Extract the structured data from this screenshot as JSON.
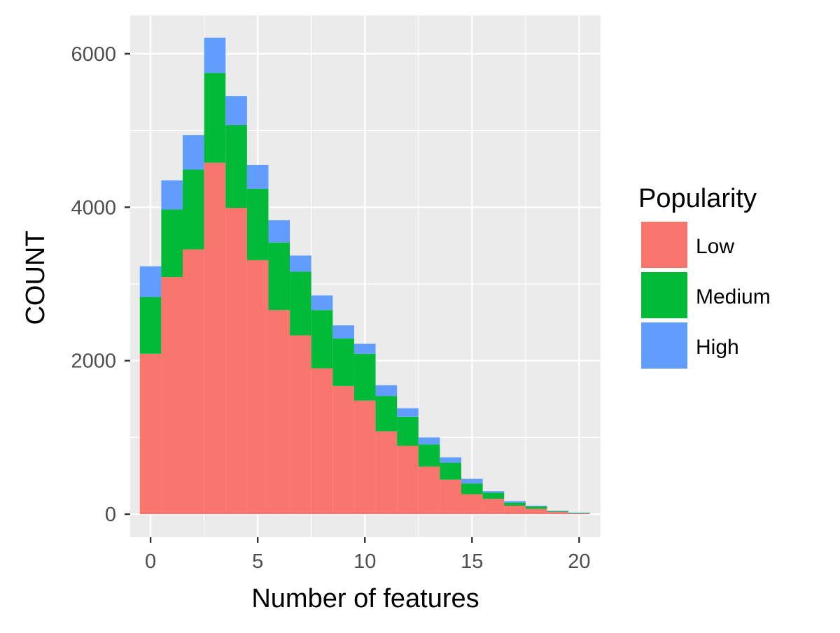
{
  "chart_data": {
    "type": "bar",
    "stacked": true,
    "xlabel": "Number of features",
    "ylabel": "COUNT",
    "xlim": [
      -0.95,
      21
    ],
    "ylim": [
      -300,
      6500
    ],
    "x_ticks": [
      0,
      5,
      10,
      15,
      20
    ],
    "y_ticks": [
      0,
      2000,
      4000,
      6000
    ],
    "grid": true,
    "legend": {
      "title": "Popularity",
      "position": "right"
    },
    "x": [
      0,
      1,
      2,
      3,
      4,
      5,
      6,
      7,
      8,
      9,
      10,
      11,
      12,
      13,
      14,
      15,
      16,
      17,
      18,
      19,
      20
    ],
    "series": [
      {
        "name": "Low",
        "color": "#F8766D",
        "values": [
          2090,
          3090,
          3450,
          4580,
          3990,
          3310,
          2660,
          2330,
          1900,
          1670,
          1480,
          1080,
          890,
          620,
          450,
          260,
          200,
          110,
          70,
          30,
          10
        ]
      },
      {
        "name": "Medium",
        "color": "#00BA38",
        "values": [
          740,
          880,
          1040,
          1170,
          1080,
          930,
          880,
          830,
          760,
          620,
          610,
          460,
          380,
          290,
          220,
          140,
          80,
          40,
          30,
          10,
          5
        ]
      },
      {
        "name": "High",
        "color": "#619CFF",
        "values": [
          400,
          380,
          450,
          460,
          380,
          310,
          290,
          210,
          190,
          170,
          130,
          140,
          110,
          90,
          70,
          60,
          20,
          20,
          10,
          5,
          5
        ]
      }
    ]
  }
}
